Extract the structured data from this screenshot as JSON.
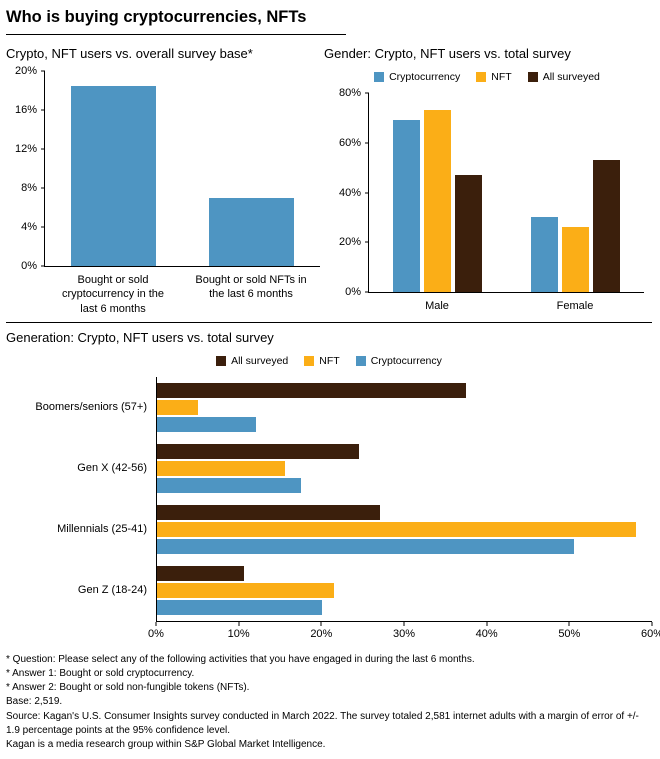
{
  "page_title": "Who is buying cryptocurrencies, NFTs",
  "colors": {
    "crypto_blue": "#4E95C2",
    "nft_orange": "#FBAE17",
    "surveyed_brown": "#3B1F0C",
    "axis": "#000000"
  },
  "chart_data": [
    {
      "id": "overall",
      "type": "bar",
      "title": "Crypto, NFT users vs. overall survey base*",
      "categories": [
        "Bought or sold cryptocurrency in the last 6 months",
        "Bought or sold NFTs in the last 6 months"
      ],
      "values": [
        18.5,
        7
      ],
      "bar_color_key": "crypto_blue",
      "ylim": [
        0,
        20
      ],
      "yticks": [
        0,
        4,
        8,
        12,
        16,
        20
      ],
      "grid": false
    },
    {
      "id": "gender",
      "type": "bar",
      "title": "Gender: Crypto, NFT users vs. total survey",
      "categories": [
        "Male",
        "Female"
      ],
      "series": [
        {
          "name": "Cryptocurrency",
          "color_key": "crypto_blue",
          "values": [
            69,
            30
          ]
        },
        {
          "name": "NFT",
          "color_key": "nft_orange",
          "values": [
            73,
            26
          ]
        },
        {
          "name": "All surveyed",
          "color_key": "surveyed_brown",
          "values": [
            47,
            53
          ]
        }
      ],
      "ylim": [
        0,
        80
      ],
      "yticks": [
        0,
        20,
        40,
        60,
        80
      ],
      "legend_position": "top",
      "grid": false
    },
    {
      "id": "generation",
      "type": "bar-horizontal",
      "title": "Generation: Crypto, NFT users vs. total survey",
      "categories": [
        "Boomers/seniors (57+)",
        "Gen X (42-56)",
        "Millennials (25-41)",
        "Gen Z (18-24)"
      ],
      "series": [
        {
          "name": "All surveyed",
          "color_key": "surveyed_brown",
          "values": [
            37.5,
            24.5,
            27,
            10.5
          ]
        },
        {
          "name": "NFT",
          "color_key": "nft_orange",
          "values": [
            5,
            15.5,
            58,
            21.5
          ]
        },
        {
          "name": "Cryptocurrency",
          "color_key": "crypto_blue",
          "values": [
            12,
            17.5,
            50.5,
            20
          ]
        }
      ],
      "xlim": [
        0,
        60
      ],
      "xticks": [
        0,
        10,
        20,
        30,
        40,
        50,
        60
      ],
      "legend_position": "top",
      "grid": false
    }
  ],
  "footnotes": [
    "* Question: Please select any of the following activities that you have engaged in during the last 6 months.",
    "* Answer 1: Bought or sold cryptocurrency.",
    "* Answer 2: Bought or sold non-fungible tokens (NFTs).",
    "Base: 2,519.",
    "Source: Kagan's U.S. Consumer Insights survey conducted in March 2022. The survey totaled 2,581 internet adults with a margin of error of +/- 1.9 percentage points at the 95% confidence level.",
    "Kagan is a media research group within S&P Global Market Intelligence."
  ]
}
